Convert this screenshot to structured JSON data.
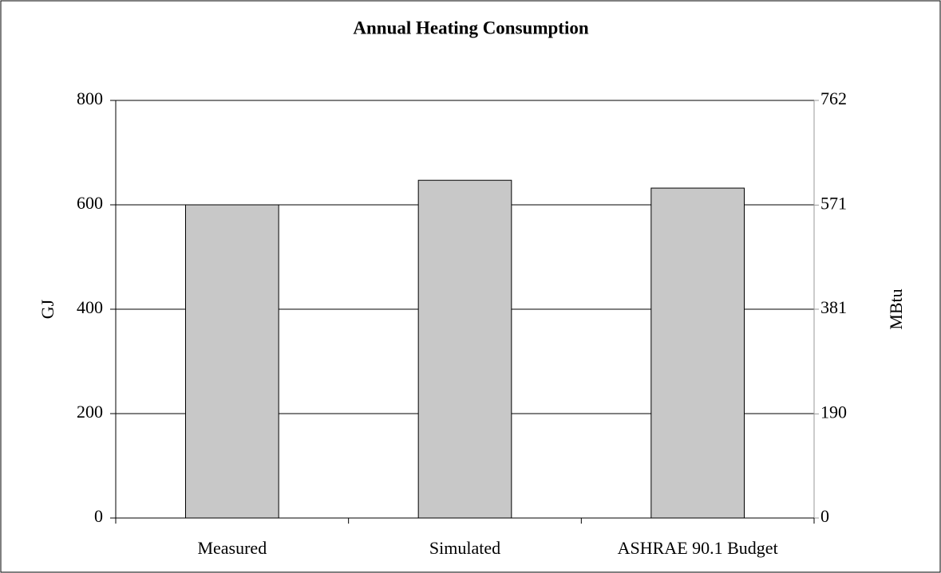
{
  "chart_data": {
    "type": "bar",
    "title": "Annual Heating Consumption",
    "categories": [
      "Measured",
      "Simulated",
      "ASHRAE 90.1 Budget"
    ],
    "values": [
      600,
      647,
      632
    ],
    "color": "#c8c8c8",
    "ylabel": "GJ",
    "ylim": [
      0,
      800
    ],
    "yticks": [
      0,
      200,
      400,
      600,
      800
    ],
    "y2label": "MBtu",
    "y2lim": [
      0,
      762
    ],
    "y2ticks": [
      0,
      190,
      381,
      571,
      762
    ],
    "grid": true
  }
}
